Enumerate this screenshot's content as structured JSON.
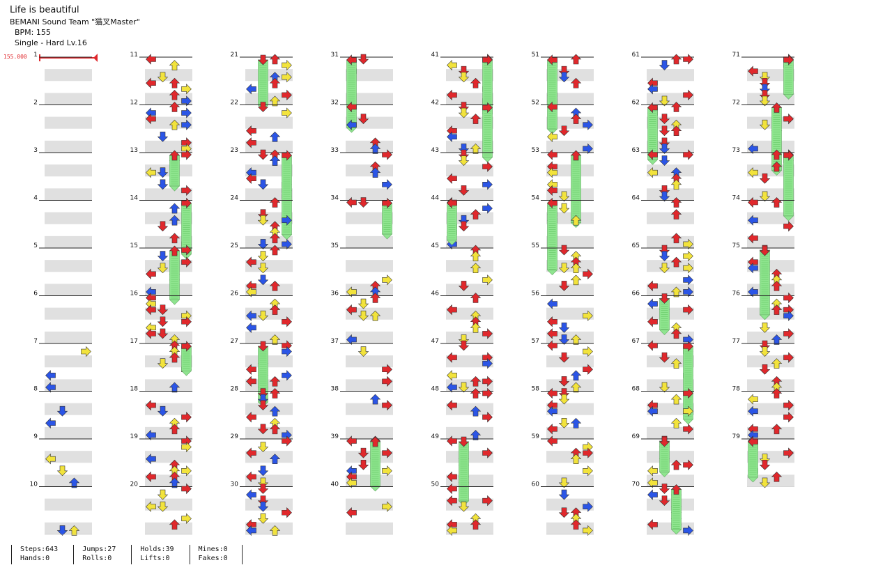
{
  "song": {
    "title": "Life is beautiful",
    "artist": "BEMANI Sound Team \"猫叉Master\"",
    "bpm": "BPM: 155",
    "difficulty": "Single - Hard  Lv.16"
  },
  "bpm_marker": "155.000",
  "colors": {
    "quarter": "#e0282c",
    "eighth": "#2b55e6",
    "sixteenth": "#f2e33c",
    "mine": "#b23cf0",
    "hold": "#8fe58f",
    "stripe": "#e0e0e0"
  },
  "chart": {
    "columns": 8,
    "measures_per_column": 10,
    "total_measures": 79,
    "measure_labels": [
      "1",
      "2",
      "3",
      "4",
      "5",
      "6",
      "7",
      "8",
      "9",
      "10",
      "11",
      "12",
      "13",
      "14",
      "15",
      "16",
      "17",
      "18",
      "19",
      "20",
      "21",
      "22",
      "23",
      "24",
      "25",
      "26",
      "27",
      "28",
      "29",
      "30",
      "31",
      "32",
      "33",
      "34",
      "35",
      "36",
      "37",
      "38",
      "39",
      "40",
      "41",
      "42",
      "43",
      "44",
      "45",
      "46",
      "47",
      "48",
      "49",
      "50",
      "51",
      "52",
      "53",
      "54",
      "55",
      "56",
      "57",
      "58",
      "59",
      "60",
      "61",
      "62",
      "63",
      "64",
      "65",
      "66",
      "67",
      "68",
      "69",
      "70",
      "71",
      "72",
      "73",
      "74",
      "75",
      "76",
      "77",
      "78",
      "79"
    ],
    "arrow_icons": [
      "left-arrow-icon",
      "down-arrow-icon",
      "up-arrow-icon",
      "right-arrow-icon"
    ]
  },
  "stats": {
    "steps": "Steps:643",
    "hands": "Hands:0",
    "jumps": "Jumps:27",
    "rolls": "Rolls:0",
    "holds": "Holds:39",
    "lifts": "Lifts:0",
    "mines": "Mines:0",
    "fakes": "Fakes:0"
  }
}
